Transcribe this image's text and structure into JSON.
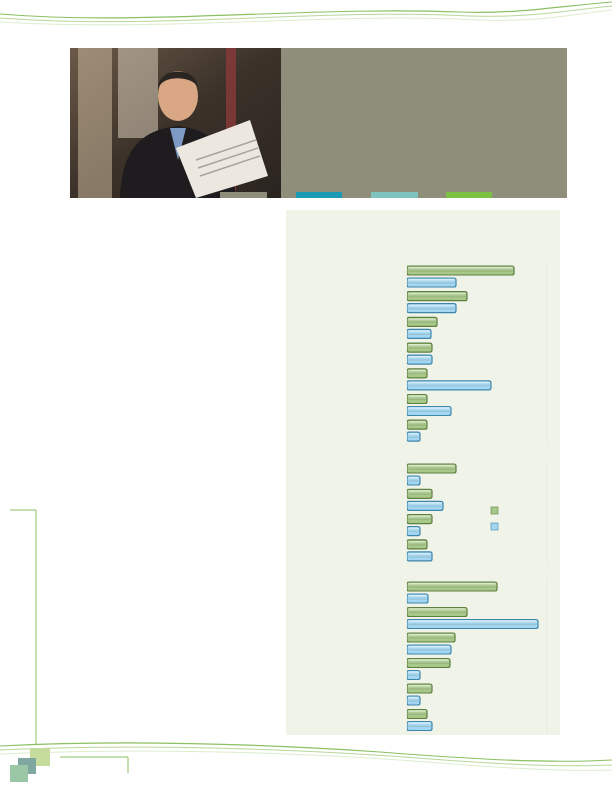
{
  "chart_data": [
    {
      "type": "bar",
      "orientation": "horizontal",
      "tick_labels": false,
      "xlim": [
        0,
        140
      ],
      "categories": [
        null,
        null,
        null,
        null,
        null,
        null,
        null
      ],
      "series": [
        {
          "color": "#a8c88a",
          "values": [
            107,
            60,
            30,
            25,
            20,
            20,
            20
          ]
        },
        {
          "color": "#a3d6f0",
          "values": [
            49,
            49,
            24,
            25,
            84,
            44,
            13
          ]
        }
      ]
    },
    {
      "type": "bar",
      "orientation": "horizontal",
      "tick_labels": false,
      "xlim": [
        0,
        140
      ],
      "categories": [
        null,
        null,
        null,
        null
      ],
      "series": [
        {
          "color": "#a8c88a",
          "values": [
            49,
            25,
            25,
            20
          ]
        },
        {
          "color": "#a3d6f0",
          "values": [
            13,
            36,
            13,
            25
          ]
        }
      ]
    },
    {
      "type": "bar",
      "orientation": "horizontal",
      "tick_labels": false,
      "xlim": [
        0,
        140
      ],
      "categories": [
        null,
        null,
        null,
        null,
        null,
        null
      ],
      "series": [
        {
          "color": "#a8c88a",
          "values": [
            90,
            60,
            48,
            43,
            25,
            20
          ]
        },
        {
          "color": "#a3d6f0",
          "values": [
            21,
            131,
            44,
            13,
            13,
            25
          ]
        }
      ]
    }
  ]
}
